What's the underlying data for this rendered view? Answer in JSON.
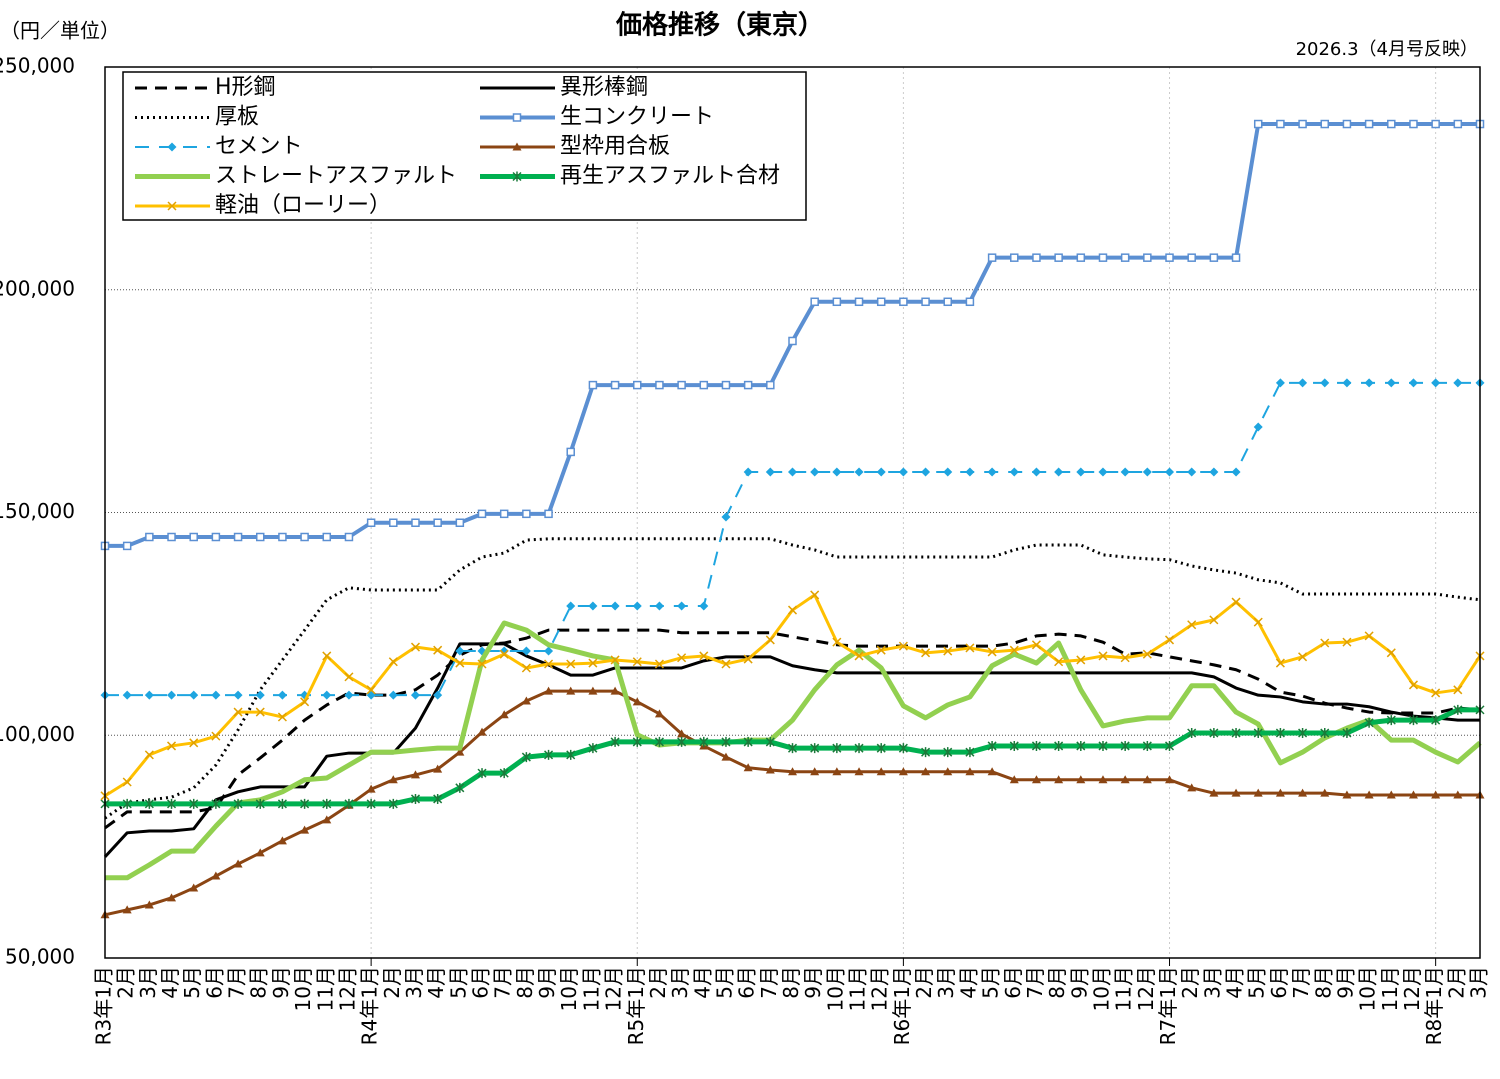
{
  "chart_data": {
    "type": "line",
    "title": "価格推移（東京）",
    "y_label": "（円／単位）",
    "note": "2026.3（4月号反映）",
    "categories": [
      "R3年1月",
      "2月",
      "3月",
      "4月",
      "5月",
      "6月",
      "7月",
      "8月",
      "9月",
      "10月",
      "11月",
      "12月",
      "R4年1月",
      "2月",
      "3月",
      "4月",
      "5月",
      "6月",
      "7月",
      "8月",
      "9月",
      "10月",
      "11月",
      "12月",
      "R5年1月",
      "2月",
      "3月",
      "4月",
      "5月",
      "6月",
      "7月",
      "8月",
      "9月",
      "10月",
      "11月",
      "12月",
      "R6年1月",
      "2月",
      "3月",
      "4月",
      "5月",
      "6月",
      "7月",
      "8月",
      "9月",
      "10月",
      "11月",
      "12月",
      "R7年1月",
      "2月",
      "3月",
      "4月",
      "5月",
      "6月",
      "7月",
      "8月",
      "9月",
      "10月",
      "11月",
      "12月",
      "R8年1月",
      "2月",
      "3月"
    ],
    "ylim": [
      50000,
      250000
    ],
    "yticks": [
      {
        "value": 50000,
        "label": "50,000"
      },
      {
        "value": 100000,
        "label": "100,000"
      },
      {
        "value": 150000,
        "label": "150,000"
      },
      {
        "value": 200000,
        "label": "200,000"
      },
      {
        "value": 250000,
        "label": "250,000"
      }
    ],
    "grid": true,
    "legend": "top-left",
    "series": [
      {
        "name": "H形鋼",
        "color": "#000000",
        "dash": "dashed",
        "width": 3,
        "marker": "none",
        "values": [
          79200,
          82800,
          82800,
          82800,
          82800,
          83700,
          91100,
          94900,
          98900,
          103400,
          106800,
          109500,
          109000,
          109000,
          110200,
          113500,
          118000,
          120300,
          120700,
          121800,
          123600,
          123600,
          123600,
          123600,
          123600,
          123600,
          123000,
          123000,
          123000,
          123000,
          123000,
          122100,
          121200,
          120300,
          120000,
          120000,
          120000,
          120000,
          120000,
          120000,
          120000,
          120700,
          122300,
          122700,
          122300,
          120900,
          118200,
          118500,
          117600,
          116700,
          115800,
          114700,
          112600,
          109700,
          108800,
          107200,
          106100,
          105200,
          105000,
          105000,
          105000,
          106100,
          105700
        ]
      },
      {
        "name": "異形棒鋼",
        "color": "#000000",
        "dash": "solid",
        "width": 3,
        "marker": "none",
        "values": [
          72700,
          78100,
          78500,
          78500,
          79000,
          85500,
          87300,
          88400,
          88400,
          88400,
          95300,
          96000,
          96000,
          96000,
          101600,
          110600,
          120500,
          120500,
          120500,
          117800,
          115800,
          113500,
          113500,
          115100,
          115100,
          115100,
          115100,
          116700,
          117600,
          117600,
          117600,
          115600,
          114700,
          114000,
          114000,
          114000,
          114000,
          114000,
          114000,
          114000,
          114000,
          114000,
          114000,
          114000,
          114000,
          114000,
          114000,
          114000,
          114000,
          114000,
          113100,
          110600,
          109000,
          108600,
          107500,
          107000,
          107000,
          106400,
          105200,
          104300,
          103900,
          103400,
          103400
        ]
      },
      {
        "name": "厚板",
        "color": "#000000",
        "dash": "dotted",
        "width": 3,
        "marker": "none",
        "values": [
          81400,
          84800,
          85500,
          86100,
          88200,
          93300,
          101200,
          110200,
          116900,
          123600,
          130400,
          133100,
          132600,
          132600,
          132600,
          132600,
          137100,
          140000,
          140900,
          143800,
          144100,
          144100,
          144100,
          144100,
          144100,
          144100,
          144100,
          144100,
          144100,
          144100,
          144100,
          142700,
          141600,
          140000,
          140000,
          140000,
          140000,
          140000,
          140000,
          140000,
          140000,
          141600,
          142700,
          142700,
          142700,
          140500,
          140000,
          139600,
          139400,
          138000,
          137100,
          136400,
          134900,
          134200,
          131700,
          131700,
          131700,
          131700,
          131700,
          131700,
          131700,
          131000,
          130400
        ]
      },
      {
        "name": "生コンクリート",
        "color": "#5b8fd2",
        "dash": "solid",
        "width": 4,
        "marker": "square",
        "values": [
          142500,
          142500,
          144500,
          144500,
          144500,
          144500,
          144500,
          144500,
          144500,
          144500,
          144500,
          144500,
          147700,
          147700,
          147700,
          147700,
          147700,
          149700,
          149700,
          149700,
          149700,
          163600,
          178600,
          178600,
          178600,
          178600,
          178600,
          178600,
          178600,
          178600,
          178600,
          188500,
          197300,
          197300,
          197300,
          197300,
          197300,
          197300,
          197300,
          197300,
          207200,
          207200,
          207200,
          207200,
          207200,
          207200,
          207200,
          207200,
          207200,
          207200,
          207200,
          207200,
          237200,
          237200,
          237200,
          237200,
          237200,
          237200,
          237200,
          237200,
          237200,
          237200,
          237200
        ]
      },
      {
        "name": "セメント",
        "color": "#1ea5e0",
        "dash": "dashed",
        "width": 2,
        "marker": "diamond",
        "values": [
          109000,
          109000,
          109000,
          109000,
          109000,
          109000,
          109000,
          109000,
          109000,
          109000,
          109000,
          109000,
          109000,
          109000,
          109000,
          109000,
          118900,
          118900,
          118900,
          118900,
          118900,
          129000,
          129000,
          129000,
          129000,
          129000,
          129000,
          129000,
          149000,
          159100,
          159100,
          159100,
          159100,
          159100,
          159100,
          159100,
          159100,
          159100,
          159100,
          159100,
          159100,
          159100,
          159100,
          159100,
          159100,
          159100,
          159100,
          159100,
          159100,
          159100,
          159100,
          159100,
          169200,
          179100,
          179100,
          179100,
          179100,
          179100,
          179100,
          179100,
          179100,
          179100,
          179100
        ]
      },
      {
        "name": "型枠用合板",
        "color": "#8b4513",
        "dash": "solid",
        "width": 3,
        "marker": "triangle",
        "values": [
          59700,
          60800,
          61900,
          63500,
          65700,
          68400,
          71100,
          73600,
          76300,
          78700,
          81000,
          84300,
          87900,
          90000,
          91100,
          92400,
          96200,
          100700,
          104600,
          107700,
          109900,
          109900,
          109900,
          109900,
          107500,
          104800,
          100300,
          97600,
          95100,
          92700,
          92200,
          91800,
          91800,
          91800,
          91800,
          91800,
          91800,
          91800,
          91800,
          91800,
          91800,
          90000,
          90000,
          90000,
          90000,
          90000,
          90000,
          90000,
          90000,
          88200,
          87000,
          87000,
          87000,
          87000,
          87000,
          87000,
          86600,
          86600,
          86600,
          86600,
          86600,
          86600,
          86600
        ]
      },
      {
        "name": "ストレートアスファルト",
        "color": "#92d050",
        "dash": "solid",
        "width": 5,
        "marker": "none",
        "values": [
          68000,
          68000,
          70900,
          74000,
          74000,
          79600,
          84800,
          85500,
          87300,
          90000,
          90400,
          93300,
          96200,
          96200,
          96700,
          97100,
          97100,
          116900,
          125200,
          123600,
          120300,
          119100,
          117800,
          116900,
          100100,
          97800,
          98300,
          98300,
          98300,
          98900,
          98900,
          103400,
          110200,
          115800,
          119100,
          115100,
          106600,
          103900,
          106800,
          108600,
          115600,
          118200,
          116200,
          120700,
          110200,
          102100,
          103200,
          103900,
          103900,
          111100,
          111100,
          105200,
          102500,
          93800,
          96200,
          99400,
          101600,
          103400,
          98900,
          98900,
          96200,
          94000,
          98300
        ]
      },
      {
        "name": "再生アスファルト合材",
        "color": "#00b050",
        "dash": "solid",
        "width": 5,
        "marker": "star",
        "values": [
          84600,
          84600,
          84600,
          84600,
          84600,
          84600,
          84600,
          84600,
          84600,
          84600,
          84600,
          84600,
          84600,
          84600,
          85700,
          85700,
          88200,
          91500,
          91500,
          95100,
          95600,
          95600,
          97100,
          98500,
          98500,
          98500,
          98500,
          98500,
          98500,
          98500,
          98500,
          97100,
          97100,
          97100,
          97100,
          97100,
          97100,
          96200,
          96200,
          96200,
          97600,
          97600,
          97600,
          97600,
          97600,
          97600,
          97600,
          97600,
          97600,
          100500,
          100500,
          100500,
          100500,
          100500,
          100500,
          100500,
          100500,
          102800,
          103400,
          103400,
          103400,
          105700,
          105700
        ]
      },
      {
        "name": "軽油（ローリー）",
        "color": "#ffc000",
        "dash": "solid",
        "width": 3,
        "marker": "cross",
        "values": [
          86400,
          89500,
          95600,
          97600,
          98300,
          99800,
          105200,
          105200,
          104100,
          107500,
          117800,
          113100,
          110200,
          116500,
          119800,
          119100,
          116200,
          116000,
          118200,
          115100,
          116000,
          116000,
          116200,
          116900,
          116500,
          116000,
          117400,
          117800,
          116000,
          117100,
          121400,
          128100,
          131500,
          120900,
          117800,
          119100,
          120000,
          118500,
          118900,
          119600,
          118700,
          119100,
          120300,
          116500,
          116900,
          117800,
          117400,
          118200,
          121400,
          124800,
          125900,
          129900,
          125400,
          116200,
          117600,
          120700,
          120900,
          122300,
          118500,
          111300,
          109500,
          110200,
          117800
        ]
      }
    ]
  }
}
